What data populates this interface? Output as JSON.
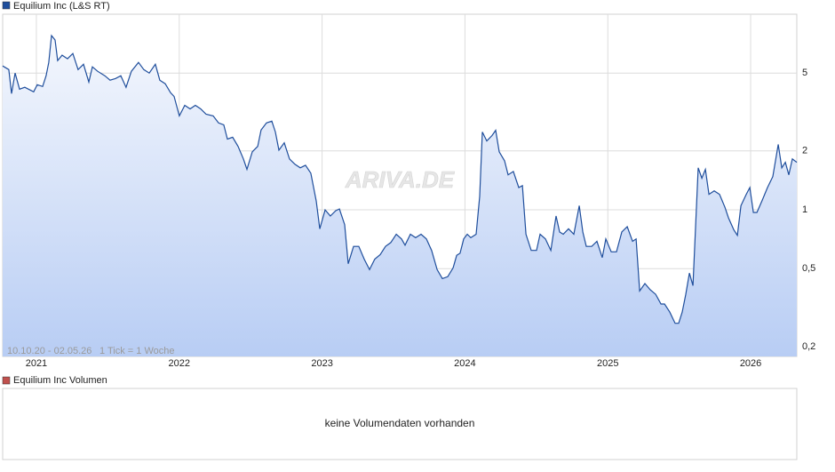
{
  "chart_data": {
    "type": "line",
    "log_scale": true,
    "grid": true,
    "series": [
      {
        "name": "Equilium Inc (L&S RT)",
        "color": "#1f4e9c",
        "x": [
          2020.764,
          2020.807,
          2020.826,
          2020.851,
          2020.882,
          2020.919,
          2020.981,
          2021.006,
          2021.044,
          2021.068,
          2021.087,
          2021.106,
          2021.131,
          2021.149,
          2021.18,
          2021.218,
          2021.255,
          2021.292,
          2021.33,
          2021.367,
          2021.392,
          2021.429,
          2021.479,
          2021.516,
          2021.553,
          2021.591,
          2021.628,
          2021.665,
          2021.715,
          2021.752,
          2021.79,
          2021.833,
          2021.864,
          2021.902,
          2021.939,
          2021.964,
          2022.001,
          2022.039,
          2022.076,
          2022.113,
          2022.15,
          2022.188,
          2022.238,
          2022.275,
          2022.312,
          2022.337,
          2022.374,
          2022.412,
          2022.449,
          2022.474,
          2022.511,
          2022.549,
          2022.573,
          2022.611,
          2022.648,
          2022.673,
          2022.698,
          2022.735,
          2022.772,
          2022.81,
          2022.847,
          2022.884,
          2022.921,
          2022.959,
          2022.984,
          2023.021,
          2023.058,
          2023.096,
          2023.121,
          2023.158,
          2023.183,
          2023.22,
          2023.257,
          2023.295,
          2023.332,
          2023.369,
          2023.407,
          2023.444,
          2023.481,
          2023.519,
          2023.556,
          2023.581,
          2023.618,
          2023.655,
          2023.693,
          2023.73,
          2023.767,
          2023.805,
          2023.842,
          2023.879,
          2023.917,
          2023.942,
          2023.966,
          2023.991,
          2024.016,
          2024.041,
          2024.078,
          2024.103,
          2024.122,
          2024.153,
          2024.19,
          2024.215,
          2024.24,
          2024.277,
          2024.302,
          2024.339,
          2024.377,
          2024.402,
          2024.427,
          2024.464,
          2024.501,
          2024.526,
          2024.563,
          2024.601,
          2024.638,
          2024.663,
          2024.688,
          2024.725,
          2024.762,
          2024.8,
          2024.825,
          2024.849,
          2024.887,
          2024.924,
          2024.961,
          2024.986,
          2025.024,
          2025.061,
          2025.098,
          2025.136,
          2025.173,
          2025.198,
          2025.223,
          2025.26,
          2025.297,
          2025.335,
          2025.372,
          2025.397,
          2025.434,
          2025.471,
          2025.496,
          2025.521,
          2025.546,
          2025.571,
          2025.596,
          2025.621,
          2025.633,
          2025.658,
          2025.683,
          2025.708,
          2025.745,
          2025.782,
          2025.82,
          2025.845,
          2025.882,
          2025.907,
          2025.932,
          2025.969,
          2025.994,
          2026.019,
          2026.044,
          2026.081,
          2026.118,
          2026.155,
          2026.193,
          2026.218,
          2026.243,
          2026.267,
          2026.292,
          2026.323
        ],
        "values": [
          5.44,
          5.21,
          3.93,
          5.0,
          4.14,
          4.23,
          4.01,
          4.36,
          4.27,
          4.85,
          5.67,
          7.78,
          7.38,
          5.79,
          6.17,
          5.92,
          6.3,
          5.21,
          5.55,
          4.5,
          5.38,
          5.11,
          4.85,
          4.6,
          4.69,
          4.85,
          4.23,
          5.11,
          5.67,
          5.21,
          5.0,
          5.55,
          4.6,
          4.41,
          3.97,
          3.8,
          3.02,
          3.42,
          3.28,
          3.42,
          3.28,
          3.08,
          3.02,
          2.78,
          2.72,
          2.3,
          2.35,
          2.11,
          1.82,
          1.61,
          1.98,
          2.11,
          2.56,
          2.78,
          2.84,
          2.5,
          2.02,
          2.2,
          1.82,
          1.71,
          1.64,
          1.69,
          1.54,
          1.11,
          0.8,
          1.0,
          0.93,
          0.99,
          1.01,
          0.84,
          0.53,
          0.65,
          0.65,
          0.56,
          0.495,
          0.56,
          0.59,
          0.65,
          0.68,
          0.75,
          0.71,
          0.66,
          0.75,
          0.72,
          0.75,
          0.71,
          0.62,
          0.495,
          0.445,
          0.455,
          0.505,
          0.585,
          0.6,
          0.71,
          0.75,
          0.72,
          0.75,
          1.17,
          2.5,
          2.25,
          2.4,
          2.55,
          1.98,
          1.78,
          1.51,
          1.57,
          1.3,
          1.33,
          0.75,
          0.62,
          0.62,
          0.75,
          0.71,
          0.62,
          0.93,
          0.77,
          0.75,
          0.8,
          0.75,
          1.05,
          0.77,
          0.65,
          0.65,
          0.69,
          0.57,
          0.71,
          0.61,
          0.61,
          0.77,
          0.82,
          0.69,
          0.71,
          0.385,
          0.42,
          0.39,
          0.37,
          0.33,
          0.33,
          0.3,
          0.263,
          0.263,
          0.3,
          0.37,
          0.475,
          0.41,
          1.05,
          1.64,
          1.45,
          1.61,
          1.2,
          1.25,
          1.2,
          1.03,
          0.91,
          0.79,
          0.74,
          1.05,
          1.2,
          1.3,
          0.97,
          0.97,
          1.12,
          1.3,
          1.48,
          2.16,
          1.64,
          1.75,
          1.51,
          1.82,
          1.75
        ]
      }
    ],
    "xlim": [
      2020.764,
      2026.323
    ],
    "xticks": [
      2021,
      2022,
      2023,
      2024,
      2025,
      2026
    ],
    "ylim": [
      0.178,
      10
    ],
    "yticks": [
      {
        "value": 0.2,
        "label": "0,2"
      },
      {
        "value": 0.5,
        "label": "0,5"
      },
      1,
      2,
      5
    ],
    "date_range": "10.10.20 - 02.05.26",
    "tick_note": "1 Tick = 1 Woche",
    "watermark": "ARIVA.DE"
  },
  "volume_panel": {
    "legend": "Equilium Inc Volumen",
    "legend_color": "#c0504d",
    "message": "keine Volumendaten vorhanden"
  }
}
